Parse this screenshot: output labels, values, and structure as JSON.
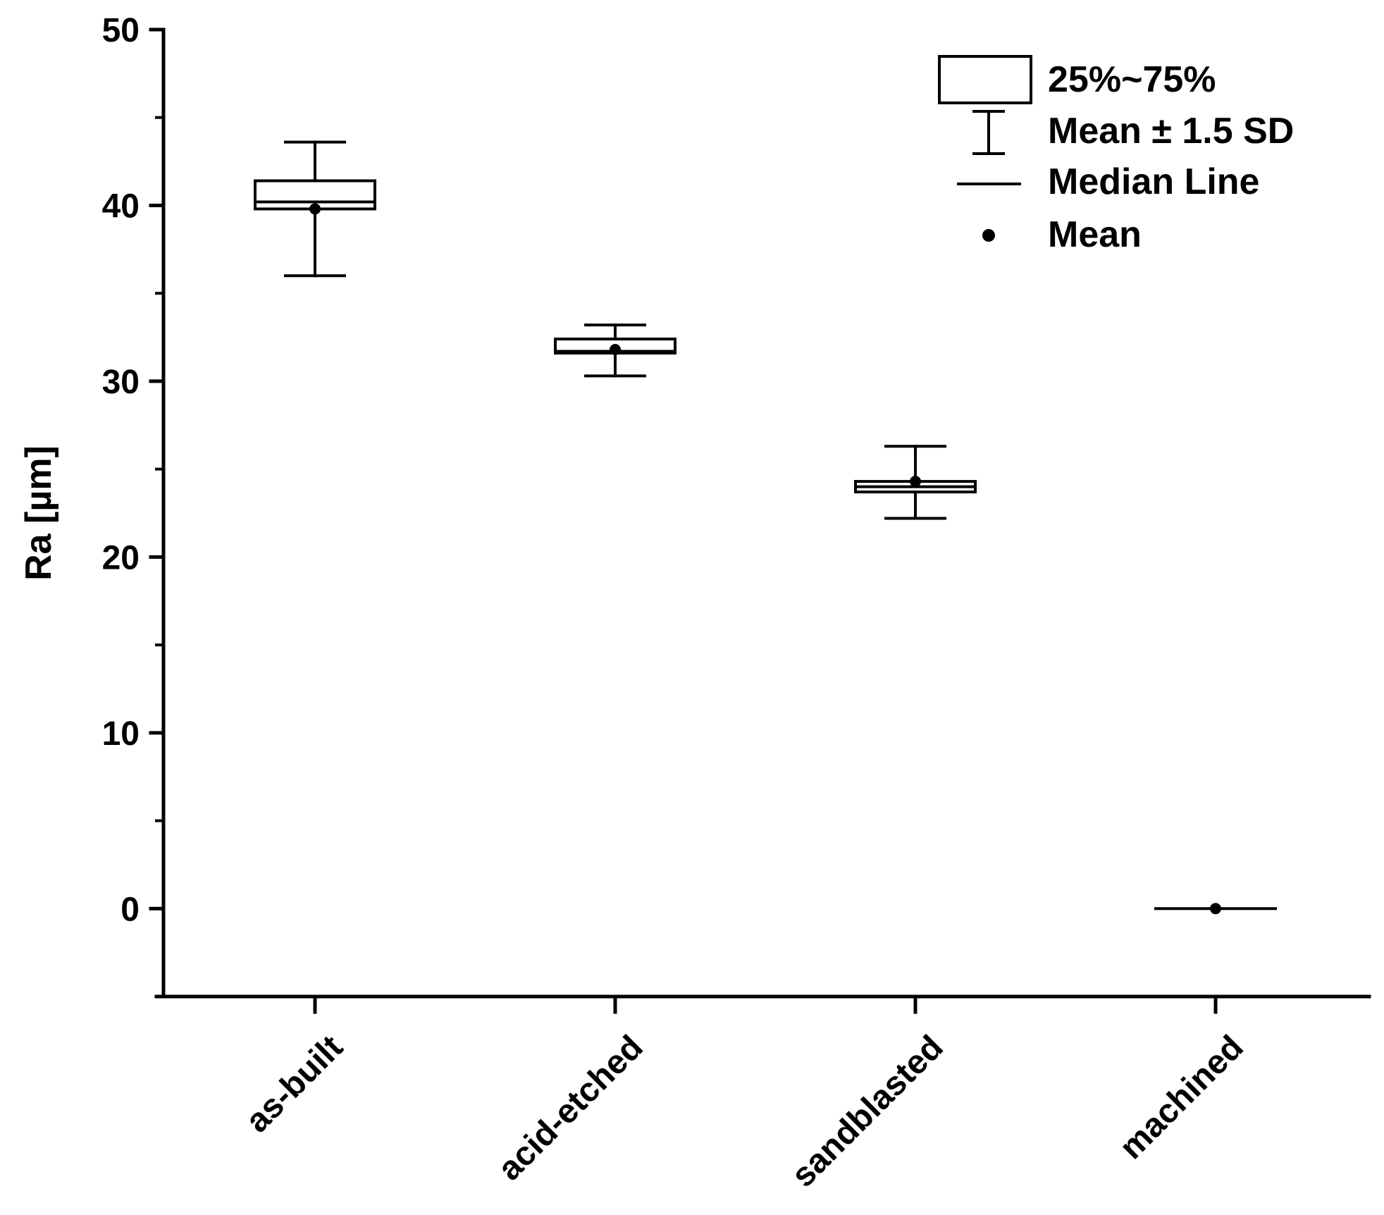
{
  "chart_data": {
    "type": "box",
    "title": "",
    "xlabel": "",
    "ylabel": "Ra [µm]",
    "ylim": [
      -5,
      50
    ],
    "y_ticks": [
      0,
      10,
      20,
      30,
      40,
      50
    ],
    "categories": [
      "as-built",
      "acid-etched",
      "sandblasted",
      "machined"
    ],
    "series": [
      {
        "name": "as-built",
        "q1": 39.8,
        "median": 40.2,
        "q3": 41.4,
        "mean": 39.8,
        "whisker_low": 36.0,
        "whisker_high": 43.6
      },
      {
        "name": "acid-etched",
        "q1": 31.6,
        "median": 31.7,
        "q3": 32.4,
        "mean": 31.8,
        "whisker_low": 30.3,
        "whisker_high": 33.2
      },
      {
        "name": "sandblasted",
        "q1": 23.7,
        "median": 24.0,
        "q3": 24.3,
        "mean": 24.3,
        "whisker_low": 22.2,
        "whisker_high": 26.3
      },
      {
        "name": "machined",
        "q1": 0.0,
        "median": 0.0,
        "q3": 0.0,
        "mean": 0.0,
        "whisker_low": 0.0,
        "whisker_high": 0.0
      }
    ],
    "legend": {
      "position": "top-right",
      "items": [
        {
          "name": "box",
          "label": "25%~75%"
        },
        {
          "name": "whisker",
          "label": "Mean ± 1.5 SD"
        },
        {
          "name": "median",
          "label": "Median Line"
        },
        {
          "name": "mean",
          "label": "Mean"
        }
      ]
    },
    "colors": {
      "ink": "#000000",
      "background": "#ffffff"
    }
  }
}
